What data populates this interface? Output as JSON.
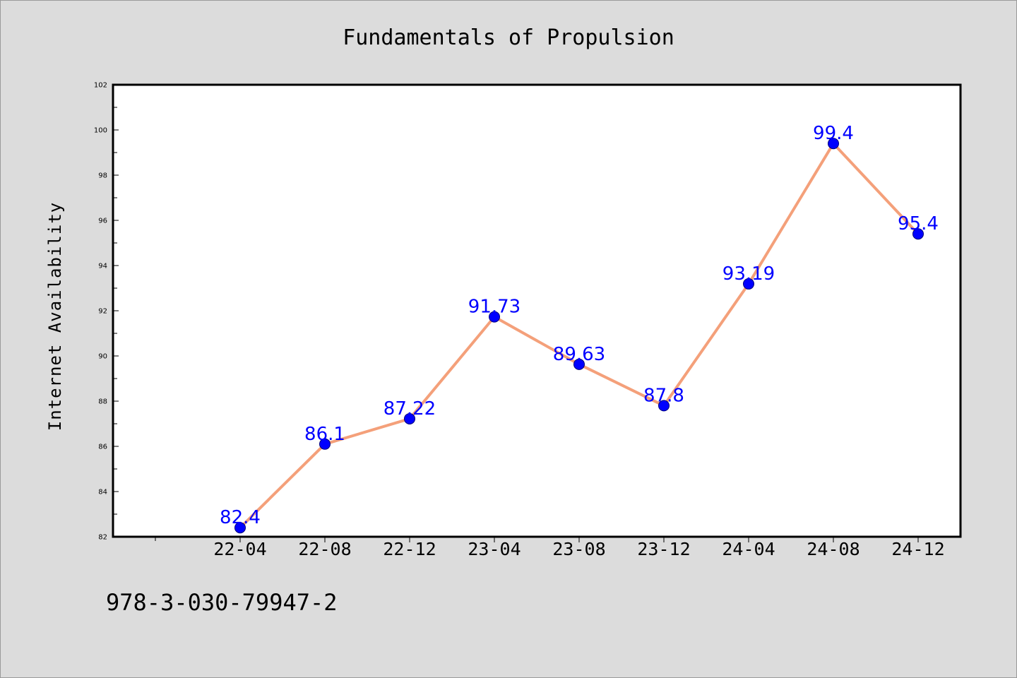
{
  "chart_data": {
    "type": "line",
    "title": "Fundamentals of Propulsion",
    "xlabel": "",
    "ylabel": "Internet Availability",
    "categories": [
      "22-04",
      "22-08",
      "22-12",
      "23-04",
      "23-08",
      "23-12",
      "24-04",
      "24-08",
      "24-12"
    ],
    "series": [
      {
        "values": [
          82.4,
          86.1,
          87.22,
          91.73,
          89.63,
          87.8,
          93.19,
          99.4,
          95.4
        ],
        "data_labels": [
          "82.4",
          "86.1",
          "87.22",
          "91.73",
          "89.63",
          "87.8",
          "93.19",
          "99.4",
          "95.4"
        ],
        "line_color": "#f4a07a",
        "marker_color": "#0000ff",
        "label_color": "#0000ff"
      }
    ],
    "ylim": [
      82,
      102
    ],
    "yticks": [
      82,
      84,
      86,
      88,
      90,
      92,
      94,
      96,
      98,
      100,
      102
    ],
    "grid": false,
    "legend": "none",
    "annotation": "978-3-030-79947-2"
  },
  "colors": {
    "background": "#dcdcdc",
    "plot_background": "#ffffff",
    "axis": "#000000",
    "text": "#000000"
  }
}
